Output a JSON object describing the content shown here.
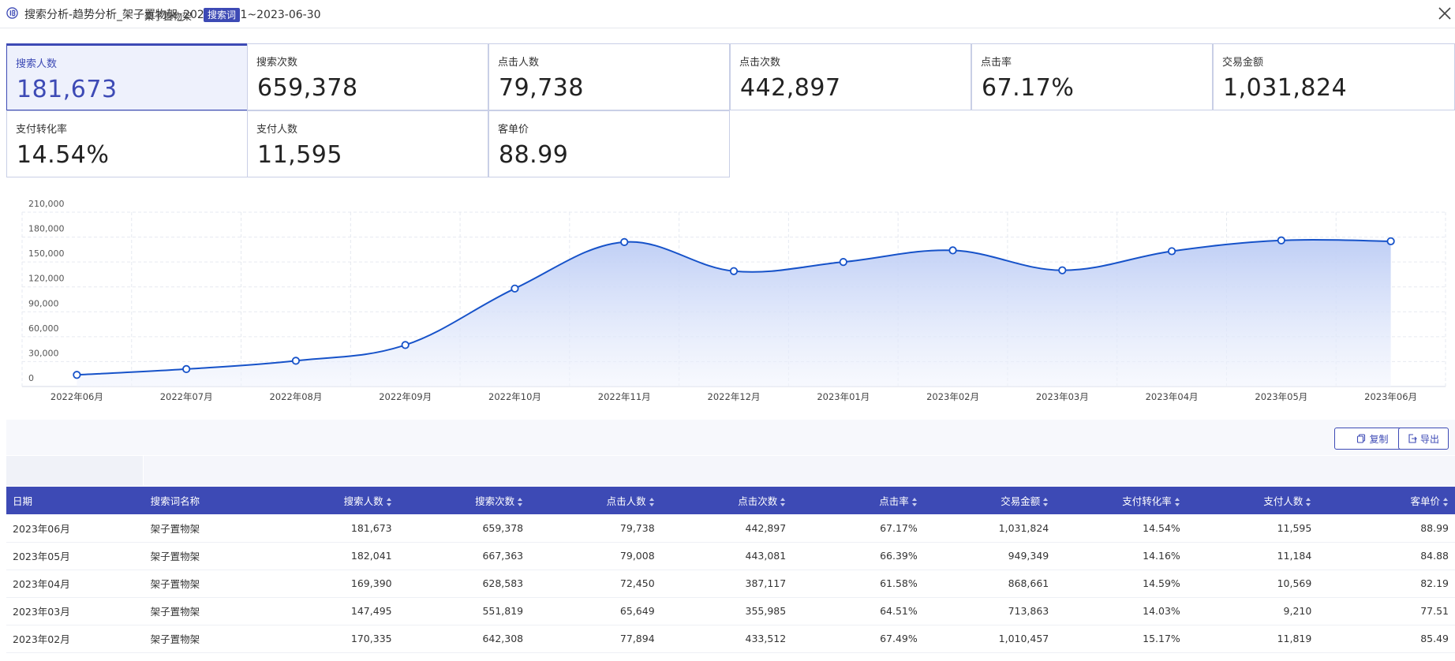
{
  "window": {
    "title": "搜索分析-趋势分析_架子置物架_2023-06-01~2023-06-30"
  },
  "metrics": [
    {
      "label": "搜索人数",
      "value": "181,673"
    },
    {
      "label": "搜索次数",
      "value": "659,378"
    },
    {
      "label": "点击人数",
      "value": "79,738"
    },
    {
      "label": "点击次数",
      "value": "442,897"
    },
    {
      "label": "点击率",
      "value": "67.17%"
    },
    {
      "label": "交易金额",
      "value": "1,031,824"
    },
    {
      "label": "支付转化率",
      "value": "14.54%"
    },
    {
      "label": "支付人数",
      "value": "11,595"
    },
    {
      "label": "客单价",
      "value": "88.99"
    }
  ],
  "chart_data": {
    "type": "area",
    "categories": [
      "2022年06月",
      "2022年07月",
      "2022年08月",
      "2022年09月",
      "2022年10月",
      "2022年11月",
      "2022年12月",
      "2023年01月",
      "2023年02月",
      "2023年03月",
      "2023年04月",
      "2023年05月",
      "2023年06月"
    ],
    "series": [
      {
        "values": [
          14000,
          21000,
          31000,
          50000,
          118000,
          174000,
          139000,
          150000,
          164000,
          140000,
          163000,
          176000,
          175000
        ]
      }
    ],
    "y_ticks": [
      "0",
      "30,000",
      "60,000",
      "90,000",
      "120,000",
      "150,000",
      "180,000",
      "210,000"
    ],
    "ylim": [
      0,
      210000
    ],
    "grid": true,
    "color": "#1652c9"
  },
  "toolbar": {
    "copy_label": "复制",
    "export_label": "导出"
  },
  "filter": {
    "keyword": "架子置物架",
    "tag": "搜索词"
  },
  "table": {
    "headers": [
      "日期",
      "搜索词名称",
      "搜索人数",
      "搜索次数",
      "点击人数",
      "点击次数",
      "点击率",
      "交易金额",
      "支付转化率",
      "支付人数",
      "客单价"
    ],
    "rows": [
      [
        "2023年06月",
        "架子置物架",
        "181,673",
        "659,378",
        "79,738",
        "442,897",
        "67.17%",
        "1,031,824",
        "14.54%",
        "11,595",
        "88.99"
      ],
      [
        "2023年05月",
        "架子置物架",
        "182,041",
        "667,363",
        "79,008",
        "443,081",
        "66.39%",
        "949,349",
        "14.16%",
        "11,184",
        "84.88"
      ],
      [
        "2023年04月",
        "架子置物架",
        "169,390",
        "628,583",
        "72,450",
        "387,117",
        "61.58%",
        "868,661",
        "14.59%",
        "10,569",
        "82.19"
      ],
      [
        "2023年03月",
        "架子置物架",
        "147,495",
        "551,819",
        "65,649",
        "355,985",
        "64.51%",
        "713,863",
        "14.03%",
        "9,210",
        "77.51"
      ],
      [
        "2023年02月",
        "架子置物架",
        "170,335",
        "642,308",
        "77,894",
        "433,512",
        "67.49%",
        "1,010,457",
        "15.17%",
        "11,819",
        "85.49"
      ]
    ]
  }
}
